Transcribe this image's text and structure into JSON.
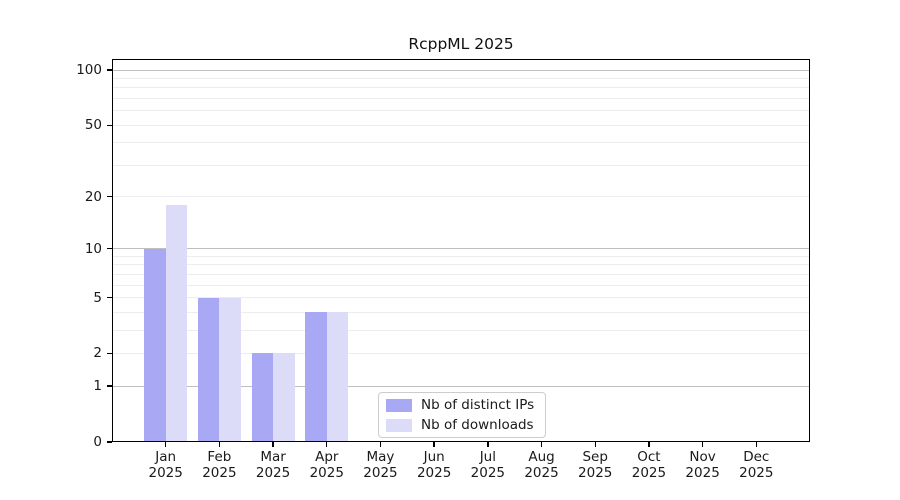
{
  "title": "RcppML 2025",
  "colors": {
    "ips_bar": "#a8a8f5",
    "downloads_bar": "#dcdcf8",
    "grid_major": "#bfbfbf",
    "grid_minor": "#ededed",
    "axis": "#000000",
    "legend_border": "#cccccc",
    "text": "#1a1a1a"
  },
  "chart_data": {
    "type": "bar",
    "title": "RcppML 2025",
    "xlabel": "",
    "ylabel": "",
    "scale": "log1p",
    "grid": "on",
    "legend_position": "lower center (inside plot)",
    "year_label": "2025",
    "categories": [
      "Jan",
      "Feb",
      "Mar",
      "Apr",
      "May",
      "Jun",
      "Jul",
      "Aug",
      "Sep",
      "Oct",
      "Nov",
      "Dec"
    ],
    "series": [
      {
        "key": "ips",
        "name": "Nb of distinct IPs",
        "values": [
          10,
          5,
          2,
          4,
          0,
          0,
          0,
          0,
          0,
          0,
          0,
          0
        ]
      },
      {
        "key": "downloads",
        "name": "Nb of downloads",
        "values": [
          18,
          5,
          2,
          4,
          0,
          0,
          0,
          0,
          0,
          0,
          0,
          0
        ]
      }
    ],
    "y_ticks": [
      0,
      1,
      2,
      5,
      10,
      20,
      50,
      100
    ],
    "y_max": 115,
    "grid_major_values": [
      1,
      10,
      100
    ],
    "grid_minor_values": [
      2,
      3,
      4,
      5,
      6,
      7,
      8,
      9,
      20,
      30,
      40,
      50,
      60,
      70,
      80,
      90
    ]
  }
}
